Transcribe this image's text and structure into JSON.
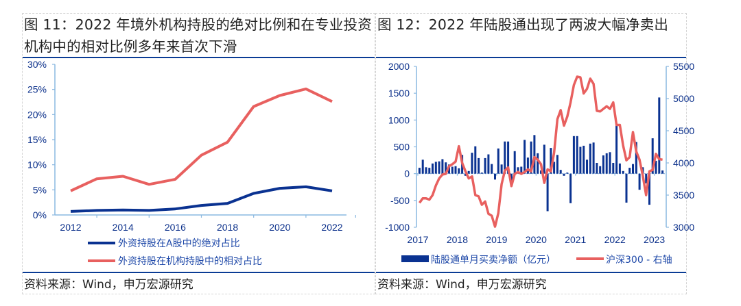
{
  "colors": {
    "navy": "#0a3291",
    "salmon": "#e8605f",
    "axis": "#8ab8e0",
    "rule": "#0a3c95",
    "tick_text": "#0a2f8a"
  },
  "figures": [
    {
      "title_line1": "图 11：2022 年境外机构持股的绝对比例和在专业投资",
      "title_line2": "机构中的相对比例多年来首次下滑",
      "source": "资料来源：Wind，申万宏源研究"
    },
    {
      "title_line1": "图 12：2022 年陆股通出现了两波大幅净卖出",
      "source": "资料来源：Wind，申万宏源研究"
    }
  ],
  "chart_data": [
    {
      "type": "line",
      "title": "2022 年境外机构持股的绝对比例和在专业投资机构中的相对比例多年来首次下滑",
      "x": [
        2012,
        2013,
        2014,
        2015,
        2016,
        2017,
        2018,
        2019,
        2020,
        2021,
        2022
      ],
      "x_tick_labels": [
        "2012",
        "2014",
        "2016",
        "2018",
        "2020",
        "2022"
      ],
      "y_tick_labels": [
        "0%",
        "5%",
        "10%",
        "15%",
        "20%",
        "25%",
        "30%"
      ],
      "ylim": [
        0,
        30
      ],
      "yunit": "%",
      "grid": false,
      "legend_position": "bottom",
      "series": [
        {
          "name": "外资持股在A股中的绝对占比",
          "color": "#0a3291",
          "values": [
            0.7,
            0.9,
            1.0,
            0.9,
            1.2,
            1.9,
            2.3,
            4.3,
            5.3,
            5.6,
            4.8
          ]
        },
        {
          "name": "外资持股在机构持股中的相对占比",
          "color": "#e8605f",
          "values": [
            4.8,
            7.2,
            7.7,
            6.1,
            7.1,
            11.9,
            14.5,
            21.6,
            23.8,
            25.1,
            22.6
          ]
        }
      ]
    },
    {
      "type": "bar+line",
      "title": "2022 年陆股通出现了两波大幅净卖出",
      "x_tick_labels": [
        "2017",
        "2018",
        "2019",
        "2020",
        "2021",
        "2022",
        "2023"
      ],
      "x_start": "2017-01",
      "y_left_tick_labels": [
        "-1000",
        "-500",
        "0",
        "500",
        "1000",
        "1500",
        "2000"
      ],
      "y_right_tick_labels": [
        "3000",
        "3500",
        "4000",
        "4500",
        "5000",
        "5500"
      ],
      "ylim_left": [
        -1000,
        2000
      ],
      "ylim_right": [
        3000,
        5500
      ],
      "grid": false,
      "legend_position": "bottom",
      "series": [
        {
          "name": "陆股通单月买卖净额（亿元）",
          "type": "bar",
          "axis": "left",
          "color": "#0a3291",
          "values": [
            110,
            260,
            120,
            110,
            190,
            220,
            230,
            270,
            210,
            170,
            130,
            140,
            100,
            350,
            -40,
            50,
            390,
            510,
            290,
            20,
            290,
            360,
            180,
            -110,
            470,
            170,
            600,
            600,
            -200,
            420,
            120,
            130,
            630,
            300,
            600,
            720,
            380,
            60,
            540,
            -700,
            480,
            220,
            350,
            70,
            -40,
            20,
            -550,
            700,
            700,
            500,
            520,
            260,
            560,
            580,
            200,
            140,
            340,
            380,
            400,
            200,
            900,
            190,
            50,
            -540,
            110,
            180,
            590,
            -300,
            120,
            -180,
            -580,
            660,
            240,
            1420,
            60
          ]
        },
        {
          "name": "沪深300 - 右轴",
          "type": "line",
          "axis": "right",
          "color": "#e8605f",
          "values": [
            3380,
            3450,
            3450,
            3430,
            3500,
            3650,
            3760,
            3820,
            3830,
            3950,
            3980,
            4020,
            4260,
            4000,
            3870,
            3760,
            3790,
            3500,
            3480,
            3350,
            3400,
            3210,
            3180,
            3010,
            3220,
            3670,
            3880,
            3930,
            3640,
            3830,
            3860,
            3830,
            3860,
            3900,
            3870,
            4090,
            4050,
            3980,
            3690,
            3900,
            3870,
            4160,
            4680,
            4820,
            4580,
            4720,
            4940,
            5210,
            5340,
            5330,
            5080,
            5150,
            5310,
            5230,
            4810,
            4800,
            4840,
            4880,
            4840,
            4940,
            4590,
            4590,
            4270,
            4040,
            4090,
            4480,
            4180,
            4050,
            3800,
            3500,
            3870,
            3890,
            4140,
            4060,
            4050
          ]
        }
      ]
    }
  ]
}
